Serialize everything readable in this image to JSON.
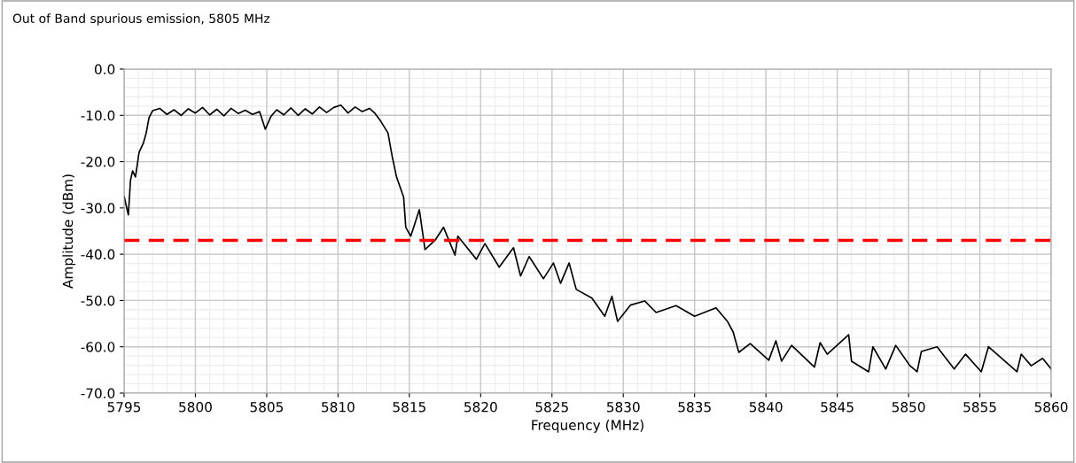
{
  "chart_data": {
    "type": "line",
    "title": "Out of Band spurious emission, 5805 MHz",
    "xlabel": "Frequency (MHz)",
    "ylabel": "Amplitude (dBm)",
    "xlim": [
      5795,
      5860
    ],
    "xticks": [
      5795,
      5800,
      5805,
      5810,
      5815,
      5820,
      5825,
      5830,
      5835,
      5840,
      5845,
      5850,
      5855,
      5860
    ],
    "ylim": [
      -70,
      0
    ],
    "yticks": [
      {
        "value": 0,
        "label": "0.0"
      },
      {
        "value": -10,
        "label": "-10.0"
      },
      {
        "value": -20,
        "label": "-20.0"
      },
      {
        "value": -30,
        "label": "-30.0"
      },
      {
        "value": -40,
        "label": "-40.0"
      },
      {
        "value": -50,
        "label": "-50.0"
      },
      {
        "value": -60,
        "label": "-60.0"
      },
      {
        "value": -70,
        "label": "-70.0"
      }
    ],
    "grid": true,
    "marker": "none",
    "line_style": "solid",
    "ref_lines": [
      {
        "axis": "y",
        "value": -37,
        "label": null,
        "color": "#ff0000",
        "line_style": "dashed"
      }
    ],
    "series": [
      {
        "color": "#000000",
        "x": [
          5795.0,
          5795.3,
          5795.45,
          5795.6,
          5795.8,
          5796.05,
          5796.35,
          5796.55,
          5796.75,
          5797.0,
          5797.5,
          5798.0,
          5798.5,
          5799.0,
          5799.5,
          5800.0,
          5800.5,
          5801.0,
          5801.5,
          5802.0,
          5802.5,
          5803.0,
          5803.5,
          5804.0,
          5804.5,
          5804.9,
          5805.3,
          5805.7,
          5806.2,
          5806.7,
          5807.2,
          5807.7,
          5808.2,
          5808.7,
          5809.2,
          5809.7,
          5810.2,
          5810.7,
          5811.2,
          5811.7,
          5812.2,
          5812.6,
          5813.0,
          5813.5,
          5813.8,
          5814.1,
          5814.6,
          5814.75,
          5815.1,
          5815.7,
          5816.1,
          5816.8,
          5817.4,
          5818.2,
          5818.4,
          5819.7,
          5820.3,
          5821.3,
          5822.3,
          5822.8,
          5823.4,
          5824.4,
          5825.1,
          5825.6,
          5826.2,
          5826.7,
          5827.8,
          5828.7,
          5829.2,
          5829.6,
          5830.5,
          5831.5,
          5832.3,
          5833.7,
          5835.0,
          5836.5,
          5837.3,
          5837.7,
          5838.1,
          5838.9,
          5840.2,
          5840.7,
          5841.1,
          5841.8,
          5843.4,
          5843.8,
          5844.3,
          5845.8,
          5846.0,
          5847.2,
          5847.5,
          5848.4,
          5849.1,
          5850.1,
          5850.6,
          5850.9,
          5852.0,
          5853.2,
          5854.0,
          5855.1,
          5855.6,
          5857.6,
          5857.9,
          5858.6,
          5859.4,
          5860.0
        ],
        "values": [
          -27.5,
          -31.5,
          -24,
          -22,
          -23.3,
          -18,
          -16,
          -13.8,
          -10.5,
          -9,
          -8.5,
          -9.8,
          -8.8,
          -10,
          -8.6,
          -9.5,
          -8.3,
          -9.9,
          -8.7,
          -10.1,
          -8.5,
          -9.6,
          -8.9,
          -9.8,
          -9.2,
          -13,
          -10.2,
          -8.8,
          -9.9,
          -8.4,
          -10,
          -8.6,
          -9.7,
          -8.2,
          -9.4,
          -8.3,
          -7.8,
          -9.5,
          -8.2,
          -9.2,
          -8.5,
          -9.6,
          -11.3,
          -13.8,
          -18.9,
          -23.3,
          -27.7,
          -34.2,
          -36.1,
          -30.4,
          -39,
          -37,
          -34.2,
          -40.2,
          -36.1,
          -41.1,
          -37.7,
          -42.8,
          -38.6,
          -44.7,
          -40.5,
          -45.3,
          -41.9,
          -46.3,
          -41.9,
          -47.6,
          -49.5,
          -53.4,
          -49.1,
          -54.5,
          -51,
          -50.1,
          -52.6,
          -51.1,
          -53.4,
          -51.6,
          -54.5,
          -56.8,
          -61.2,
          -59.3,
          -62.9,
          -58.7,
          -63.1,
          -59.7,
          -64.4,
          -59.1,
          -61.6,
          -57.4,
          -63.1,
          -65.4,
          -60,
          -64.8,
          -59.7,
          -64.1,
          -65.4,
          -61,
          -60,
          -64.8,
          -61.6,
          -65.4,
          -60,
          -65.4,
          -61.6,
          -64.1,
          -62.5,
          -64.8
        ]
      }
    ]
  }
}
